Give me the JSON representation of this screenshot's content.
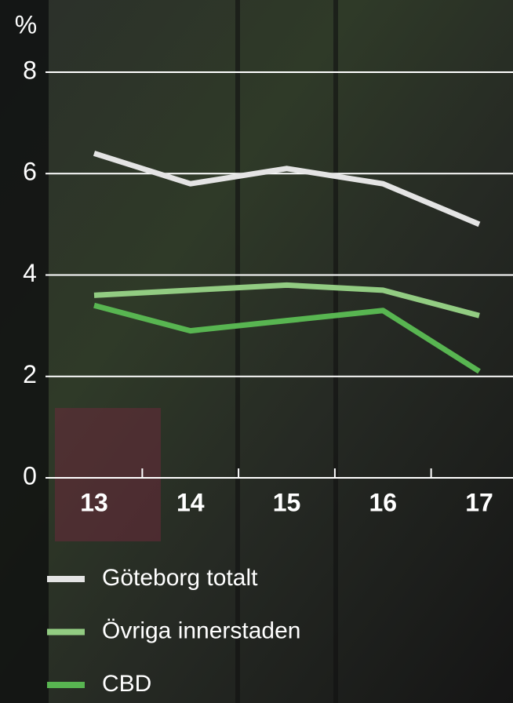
{
  "chart_data": {
    "type": "line",
    "y_unit": "%",
    "categories": [
      "13",
      "14",
      "15",
      "16",
      "17"
    ],
    "series": [
      {
        "name": "Göteborg totalt",
        "color": "#e4e4e4",
        "values": [
          6.4,
          5.8,
          6.1,
          5.8,
          5.0
        ]
      },
      {
        "name": "Övriga innerstaden",
        "color": "#92cc82",
        "values": [
          3.6,
          3.7,
          3.8,
          3.7,
          3.2
        ]
      },
      {
        "name": "CBD",
        "color": "#58b551",
        "values": [
          3.4,
          2.9,
          3.1,
          3.3,
          2.1
        ]
      }
    ],
    "ylim": [
      0,
      8
    ],
    "yticks": [
      0,
      2,
      4,
      6,
      8
    ],
    "grid": true
  }
}
